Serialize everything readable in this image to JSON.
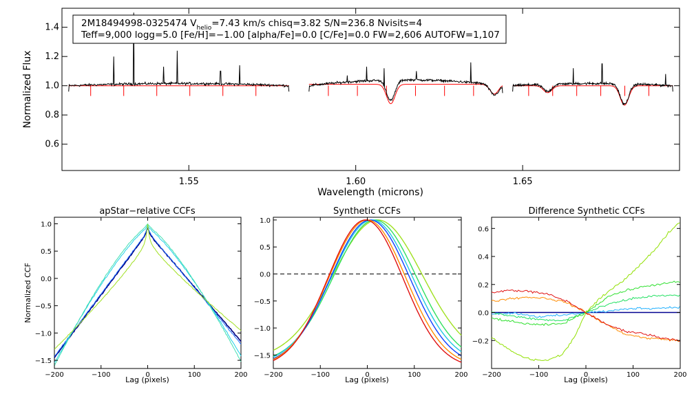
{
  "chart_data": [
    {
      "type": "line",
      "panel": "spectrum",
      "info_line1": "2M18494998-0325474  V",
      "info_sub": "helio",
      "info_line1b": "=7.43 km/s  chisq=3.82  S/N=236.8  Nvisits=4",
      "info_line2": "Teff=9,000 logg=5.0 [Fe/H]=−1.00 [alpha/Fe]=0.0 [C/Fe]=0.0 FW=2,606 AUTOFW=1,107",
      "xlabel": "Wavelength (microns)",
      "ylabel": "Normalized Flux",
      "xlim": [
        1.512,
        1.697
      ],
      "ylim": [
        0.42,
        1.53
      ],
      "xticks": [
        1.55,
        1.6,
        1.65
      ],
      "xtick_labels": [
        "1.55",
        "1.60",
        "1.65"
      ],
      "yticks": [
        0.6,
        0.8,
        1.0,
        1.2,
        1.4
      ],
      "ytick_labels": [
        "0.6",
        "0.8",
        "1.0",
        "1.2",
        "1.4"
      ],
      "chips": [
        [
          1.514,
          1.58
        ],
        [
          1.586,
          1.644
        ],
        [
          1.647,
          1.695
        ]
      ],
      "emission_lines": [
        [
          1.5275,
          1.2
        ],
        [
          1.5335,
          1.5
        ],
        [
          1.5425,
          1.13
        ],
        [
          1.5465,
          1.24
        ],
        [
          1.5595,
          1.1
        ],
        [
          1.5652,
          1.14
        ],
        [
          1.5975,
          1.07
        ],
        [
          1.6033,
          1.13
        ],
        [
          1.6085,
          1.12
        ],
        [
          1.6182,
          1.1
        ],
        [
          1.6345,
          1.16
        ],
        [
          1.6652,
          1.12
        ],
        [
          1.6738,
          1.15
        ],
        [
          1.6928,
          1.08
        ]
      ],
      "absorption_dips": [
        [
          1.6105,
          0.14
        ],
        [
          1.6415,
          0.07
        ],
        [
          1.6575,
          0.05
        ],
        [
          1.6805,
          0.14
        ]
      ],
      "series": [
        {
          "name": "observed",
          "color": "#000000"
        },
        {
          "name": "model",
          "color": "#ff0000"
        }
      ]
    },
    {
      "type": "line",
      "panel": "apstar_ccf",
      "title": "apStar−relative CCFs",
      "xlabel": "Lag (pixels)",
      "ylabel": "Normalized CCF",
      "xlim": [
        -200,
        200
      ],
      "ylim": [
        -1.65,
        1.12
      ],
      "xticks": [
        -200,
        -100,
        0,
        100,
        200
      ],
      "xtick_labels": [
        "−200",
        "−100",
        "0",
        "100",
        "200"
      ],
      "yticks": [
        -1.5,
        -1.0,
        -0.5,
        0.0,
        0.5,
        1.0
      ],
      "ytick_labels": [
        "−1.5",
        "−1.0",
        "−0.5",
        "0.0",
        "0.5",
        "1.0"
      ],
      "series": [
        {
          "name": "navy",
          "color": "#000080",
          "peak": 0.84,
          "shape": 1.0,
          "end_left": -1.45,
          "end_right": -1.15,
          "spike": 0.1,
          "noise": 0.015
        },
        {
          "name": "blue",
          "color": "#1e6bff",
          "peak": 0.86,
          "shape": 1.0,
          "end_left": -1.43,
          "end_right": -1.2,
          "spike": 0.1,
          "noise": 0.015
        },
        {
          "name": "cyan",
          "color": "#20d0e8",
          "peak": 0.92,
          "shape": 1.25,
          "end_left": -1.55,
          "end_right": -1.42,
          "spike": 0.06,
          "noise": 0.015
        },
        {
          "name": "aquamarine",
          "color": "#40e0b0",
          "peak": 0.95,
          "shape": 1.3,
          "end_left": -1.6,
          "end_right": -1.52,
          "spike": 0.05,
          "noise": 0.012
        },
        {
          "name": "yellowgreen",
          "color": "#a0e020",
          "peak": 0.72,
          "shape": 0.85,
          "end_left": -1.3,
          "end_right": -0.95,
          "spike": 0.27,
          "noise": 0.012
        }
      ]
    },
    {
      "type": "line",
      "panel": "synthetic_ccf",
      "title": "Synthetic CCFs",
      "xlabel": "Lag (pixels)",
      "xlim": [
        -200,
        200
      ],
      "ylim": [
        -1.75,
        1.05
      ],
      "xticks": [
        -200,
        -100,
        0,
        100,
        200
      ],
      "xtick_labels": [
        "−200",
        "−100",
        "0",
        "100",
        "200"
      ],
      "yticks": [
        -1.5,
        -1.0,
        -0.5,
        0.0,
        0.5,
        1.0
      ],
      "ytick_labels": [
        "−1.5",
        "−1.0",
        "−0.5",
        "0.0",
        "0.5",
        "1.0"
      ],
      "zero_line": 0.0,
      "series": [
        {
          "name": "yellowgreen",
          "color": "#a0e020",
          "center": 22,
          "sigma": 95,
          "base": -1.58
        },
        {
          "name": "green",
          "color": "#30e060",
          "center": 16,
          "sigma": 88,
          "base": -1.65
        },
        {
          "name": "cyan",
          "color": "#20c8e0",
          "center": 10,
          "sigma": 86,
          "base": -1.67
        },
        {
          "name": "blue",
          "color": "#1040ff",
          "center": 6,
          "sigma": 84,
          "base": -1.7
        },
        {
          "name": "orange",
          "color": "#ff8c00",
          "center": 0,
          "sigma": 82,
          "base": -1.72
        },
        {
          "name": "red",
          "color": "#e01010",
          "center": -4,
          "sigma": 80,
          "base": -1.74
        }
      ]
    },
    {
      "type": "line",
      "panel": "difference_ccf",
      "title": "Difference Synthetic CCFs",
      "xlabel": "Lag (pixels)",
      "xlim": [
        -200,
        200
      ],
      "ylim": [
        -0.4,
        0.68
      ],
      "xticks": [
        -200,
        -100,
        0,
        100,
        200
      ],
      "xtick_labels": [
        "−200",
        "−100",
        "0",
        "100",
        "200"
      ],
      "yticks": [
        -0.2,
        0.0,
        0.2,
        0.4,
        0.6
      ],
      "ytick_labels": [
        "−0.2",
        "0.0",
        "0.2",
        "0.4",
        "0.6"
      ],
      "zero_line": 0.0,
      "series": [
        {
          "name": "blue",
          "color": "#000090",
          "points": [
            [
              -200,
              0.0
            ],
            [
              200,
              0.0
            ]
          ]
        },
        {
          "name": "cyan",
          "color": "#20b0ff",
          "points": [
            [
              -200,
              -0.01
            ],
            [
              -150,
              -0.005
            ],
            [
              -100,
              -0.03
            ],
            [
              -50,
              -0.02
            ],
            [
              0,
              0.0
            ],
            [
              50,
              0.01
            ],
            [
              100,
              0.03
            ],
            [
              150,
              0.03
            ],
            [
              200,
              0.04
            ]
          ]
        },
        {
          "name": "green",
          "color": "#20e060",
          "points": [
            [
              -200,
              0.0
            ],
            [
              -150,
              -0.03
            ],
            [
              -100,
              -0.05
            ],
            [
              -50,
              -0.06
            ],
            [
              0,
              0.0
            ],
            [
              50,
              0.06
            ],
            [
              100,
              0.1
            ],
            [
              150,
              0.12
            ],
            [
              200,
              0.12
            ]
          ]
        },
        {
          "name": "springgreen",
          "color": "#30e030",
          "points": [
            [
              -200,
              -0.04
            ],
            [
              -150,
              -0.07
            ],
            [
              -100,
              -0.09
            ],
            [
              -50,
              -0.08
            ],
            [
              0,
              0.0
            ],
            [
              50,
              0.12
            ],
            [
              100,
              0.17
            ],
            [
              150,
              0.2
            ],
            [
              200,
              0.22
            ]
          ]
        },
        {
          "name": "yellowgreen",
          "color": "#90e000",
          "points": [
            [
              -200,
              -0.18
            ],
            [
              -170,
              -0.25
            ],
            [
              -140,
              -0.31
            ],
            [
              -110,
              -0.34
            ],
            [
              -80,
              -0.34
            ],
            [
              -50,
              -0.3
            ],
            [
              -25,
              -0.18
            ],
            [
              0,
              0.0
            ],
            [
              30,
              0.1
            ],
            [
              60,
              0.18
            ],
            [
              90,
              0.26
            ],
            [
              120,
              0.36
            ],
            [
              150,
              0.46
            ],
            [
              175,
              0.57
            ],
            [
              200,
              0.65
            ]
          ]
        },
        {
          "name": "orange",
          "color": "#ff8c00",
          "points": [
            [
              -200,
              0.08
            ],
            [
              -160,
              0.1
            ],
            [
              -120,
              0.11
            ],
            [
              -80,
              0.1
            ],
            [
              -40,
              0.07
            ],
            [
              0,
              0.0
            ],
            [
              40,
              -0.08
            ],
            [
              80,
              -0.15
            ],
            [
              120,
              -0.18
            ],
            [
              160,
              -0.19
            ],
            [
              200,
              -0.2
            ]
          ]
        },
        {
          "name": "red",
          "color": "#e01010",
          "points": [
            [
              -200,
              0.14
            ],
            [
              -160,
              0.16
            ],
            [
              -120,
              0.15
            ],
            [
              -80,
              0.13
            ],
            [
              -40,
              0.08
            ],
            [
              0,
              0.0
            ],
            [
              40,
              -0.08
            ],
            [
              80,
              -0.13
            ],
            [
              120,
              -0.15
            ],
            [
              160,
              -0.18
            ],
            [
              200,
              -0.2
            ]
          ]
        }
      ]
    }
  ]
}
